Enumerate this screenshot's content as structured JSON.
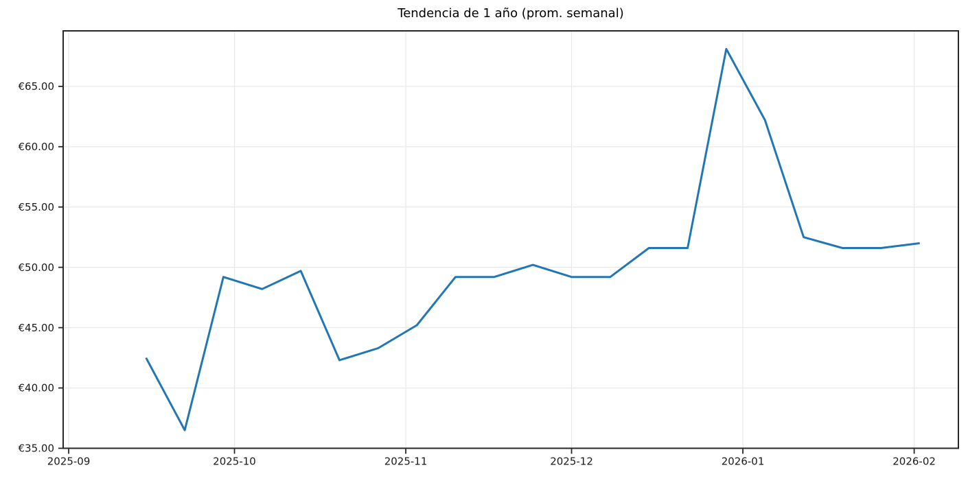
{
  "chart_data": {
    "type": "line",
    "title": "Tendencia de 1 año (prom. semanal)",
    "x": [
      "2025-09-15",
      "2025-09-22",
      "2025-09-29",
      "2025-10-06",
      "2025-10-13",
      "2025-10-20",
      "2025-10-27",
      "2025-11-03",
      "2025-11-10",
      "2025-11-17",
      "2025-11-24",
      "2025-12-01",
      "2025-12-08",
      "2025-12-15",
      "2025-12-22",
      "2025-12-29",
      "2026-01-05",
      "2026-01-12",
      "2026-01-19",
      "2026-01-26",
      "2026-02-02"
    ],
    "values": [
      42.5,
      36.5,
      49.2,
      48.2,
      49.7,
      42.3,
      43.3,
      45.2,
      49.2,
      49.2,
      50.2,
      49.2,
      49.2,
      51.6,
      51.6,
      68.1,
      62.2,
      52.5,
      51.6,
      51.6,
      52.0
    ],
    "x_tick_labels": [
      "2025-09",
      "2025-10",
      "2025-11",
      "2025-12",
      "2026-01",
      "2026-02"
    ],
    "y_tick_values": [
      35,
      40,
      45,
      50,
      55,
      60,
      65
    ],
    "y_tick_labels": [
      "€35.00",
      "€40.00",
      "€45.00",
      "€50.00",
      "€55.00",
      "€60.00",
      "€65.00"
    ],
    "ylim": [
      35,
      69.6
    ],
    "xlim": [
      "2025-08-31",
      "2026-02-09"
    ],
    "grid": true,
    "legend": "none",
    "currency": "€",
    "colors": {
      "line": "#2077b4",
      "grid": "#e8e8e8",
      "spine": "#262626",
      "tick_text": "#1a1a1a",
      "background": "#ffffff"
    }
  }
}
